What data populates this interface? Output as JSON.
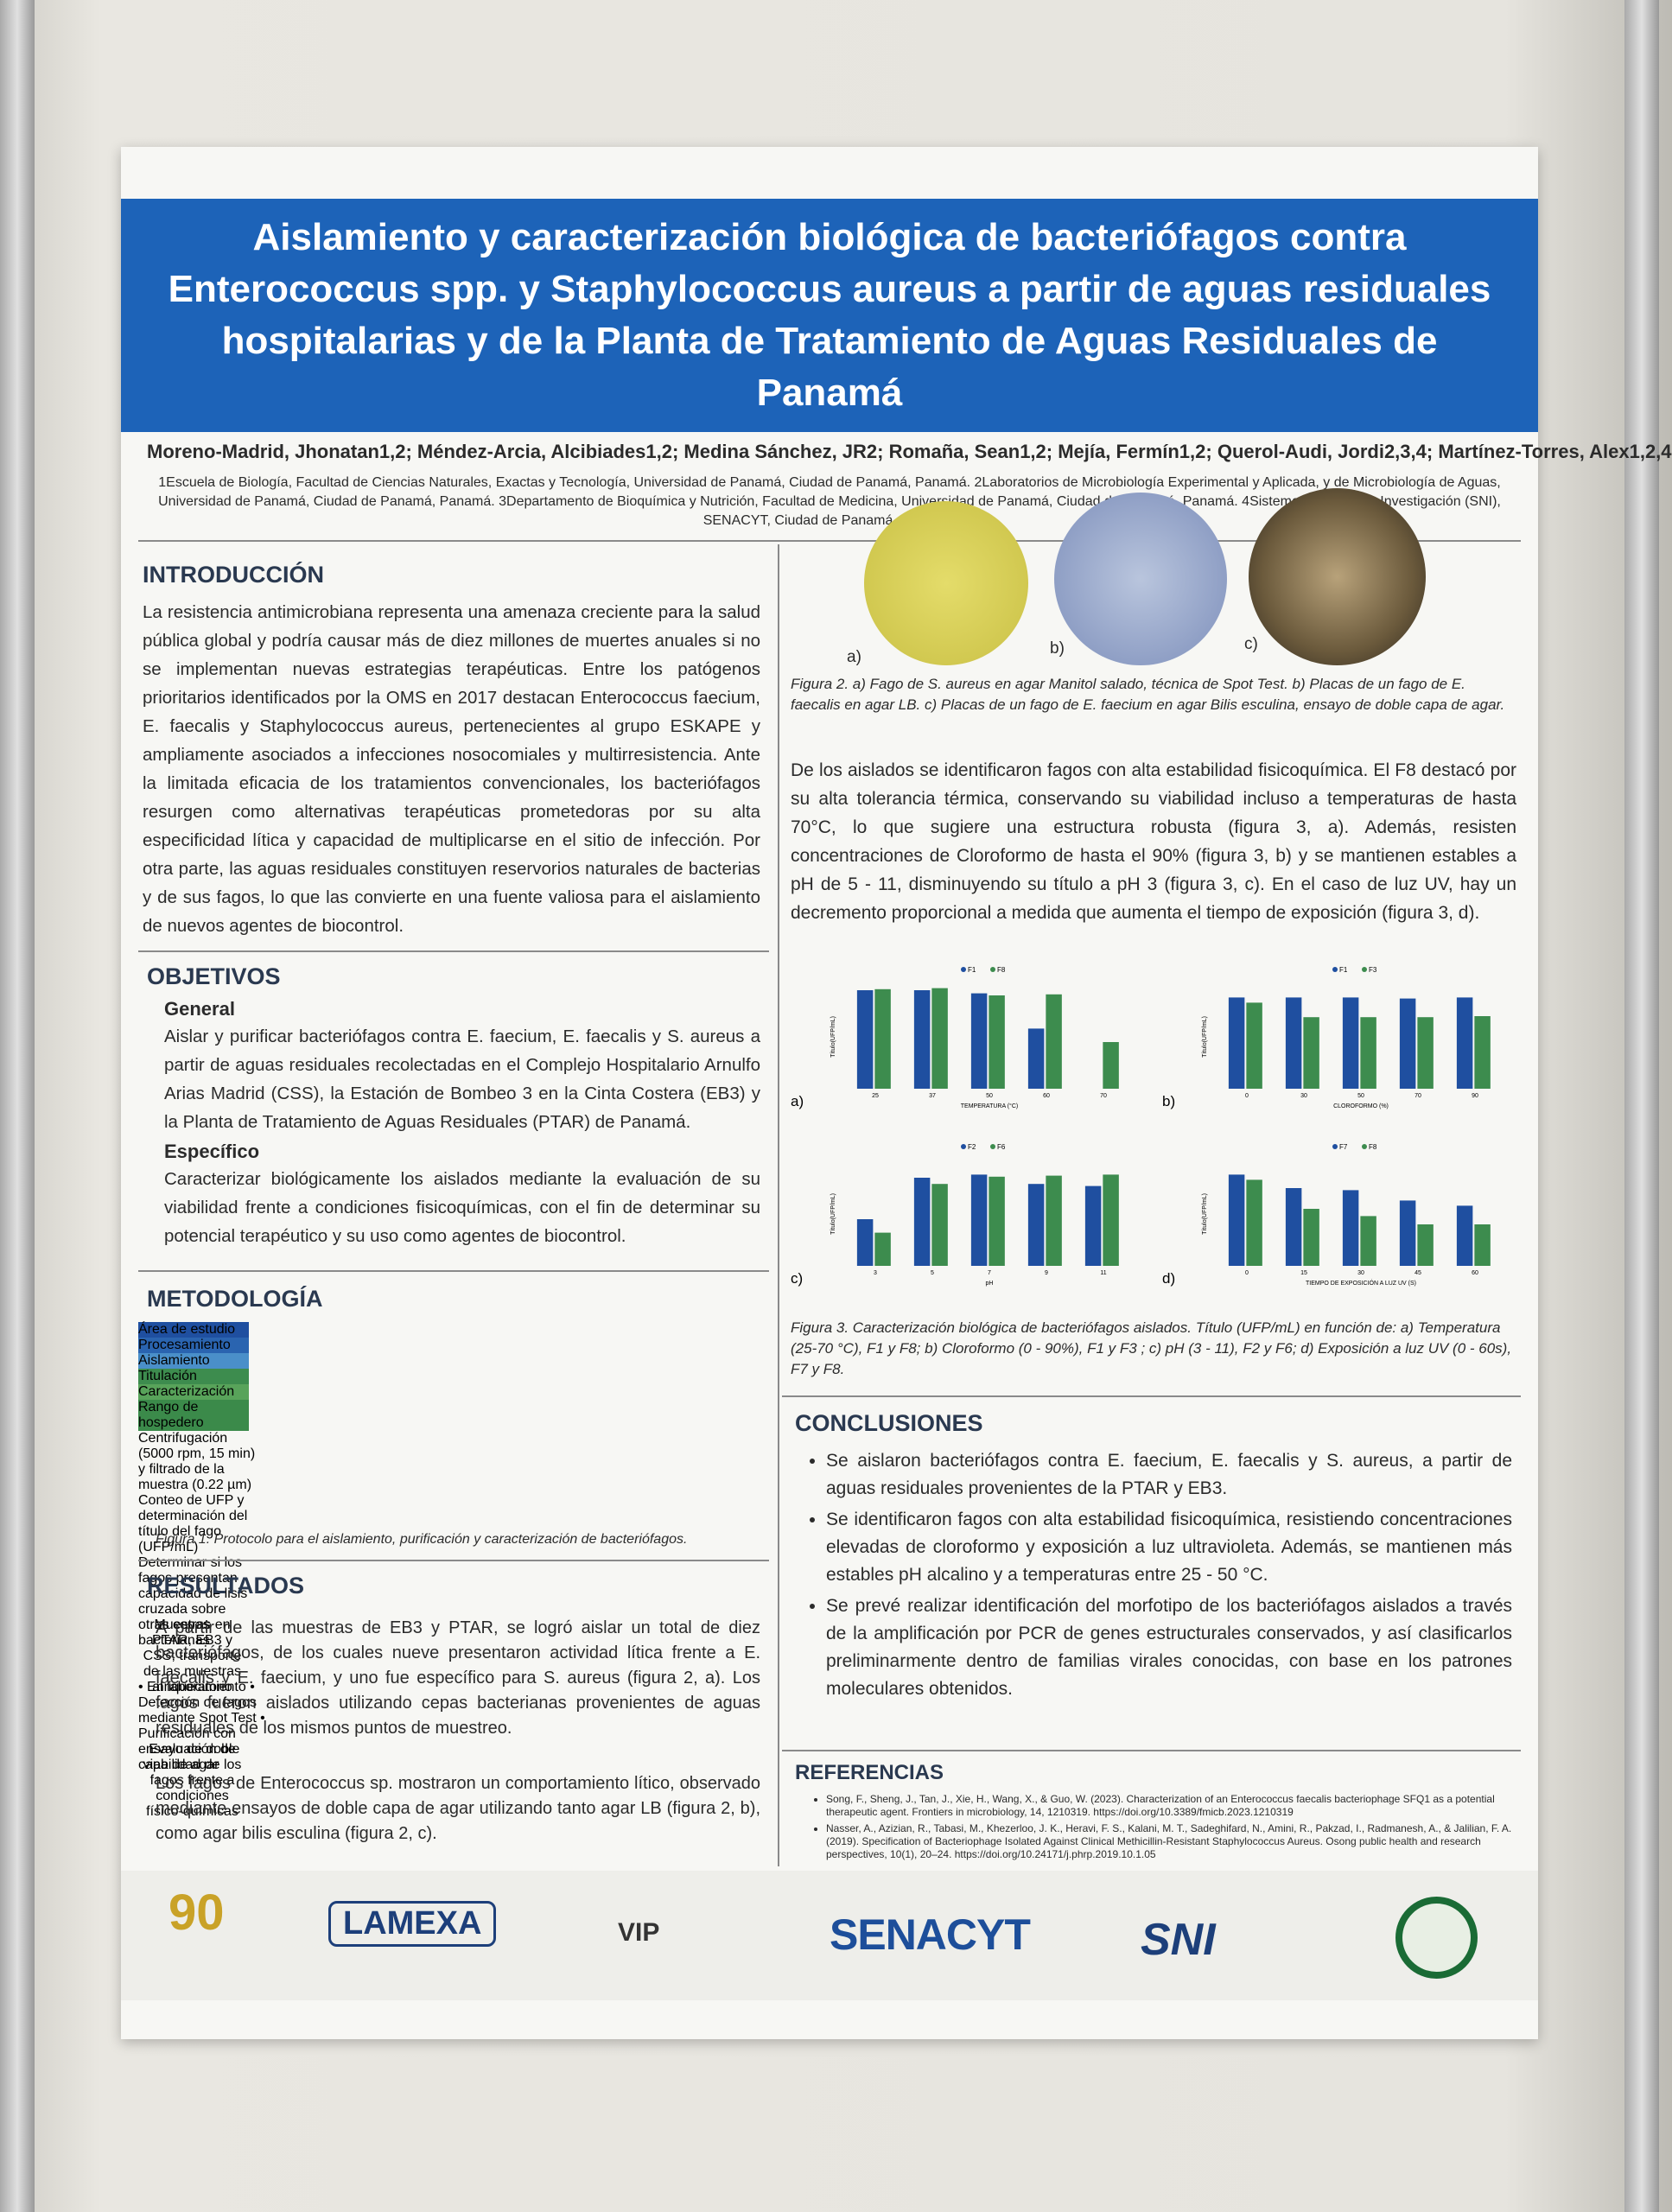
{
  "header": {
    "title": "Aislamiento y caracterización biológica de bacteriófagos contra Enterococcus spp. y Staphylococcus aureus a partir de aguas residuales hospitalarias y de la Planta de Tratamiento de Aguas Residuales de Panamá",
    "authors": "Moreno-Madrid, Jhonatan1,2; Méndez-Arcia, Alcibiades1,2; Medina Sánchez, JR2; Romaña, Sean1,2; Mejía, Fermín1,2; Querol-Audi, Jordi2,3,4; Martínez-Torres, Alex1,2,4",
    "affiliations": "1Escuela de Biología, Facultad de Ciencias Naturales, Exactas y Tecnología, Universidad de Panamá, Ciudad de Panamá, Panamá. 2Laboratorios de Microbiología Experimental y Aplicada, y de Microbiología de Aguas, Universidad de Panamá, Ciudad de Panamá, Panamá. 3Departamento de Bioquímica y Nutrición, Facultad de Medicina, Universidad de Panamá, Ciudad de Panamá, Panamá. 4Sistema Nacional de Investigación (SNI), SENACYT, Ciudad de Panamá, Panamá."
  },
  "intro": {
    "heading": "INTRODUCCIÓN",
    "text": "La resistencia antimicrobiana representa una amenaza creciente para la salud pública global y podría causar más de diez millones de muertes anuales si no se implementan nuevas estrategias terapéuticas. Entre los patógenos prioritarios identificados por la OMS en 2017 destacan Enterococcus faecium, E. faecalis y Staphylococcus aureus, pertenecientes al grupo ESKAPE y ampliamente asociados a infecciones nosocomiales y multirresistencia. Ante la limitada eficacia de los tratamientos convencionales, los bacteriófagos resurgen como alternativas terapéuticas prometedoras por su alta especificidad lítica y capacidad de multiplicarse en el sitio de infección. Por otra parte, las aguas residuales constituyen reservorios naturales de bacterias y de sus fagos, lo que las convierte en una fuente valiosa para el aislamiento de nuevos agentes de biocontrol."
  },
  "objetivos": {
    "heading": "OBJETIVOS",
    "general_heading": "General",
    "general_text": "Aislar y purificar bacteriófagos contra E. faecium, E. faecalis y S. aureus a partir de aguas residuales recolectadas en el Complejo Hospitalario Arnulfo Arias Madrid (CSS), la Estación de Bombeo 3 en la Cinta Costera (EB3) y la Planta de Tratamiento de Aguas Residuales (PTAR) de Panamá.",
    "especifico_heading": "Específico",
    "especifico_text": "Caracterizar biológicamente los aislados mediante la evaluación de su viabilidad frente a condiciones fisicoquímicas, con el fin de determinar su potencial terapéutico y su uso como agentes de biocontrol."
  },
  "metodologia": {
    "heading": "METODOLOGÍA",
    "steps": [
      "Área de estudio",
      "Procesamiento",
      "Aislamiento",
      "Titulación",
      "Caracterización",
      "Rango de hospedero"
    ],
    "top_notes": [
      "Centrifugación (5000 rpm, 15 min) y filtrado de la muestra (0.22 µm)",
      "Conteo de UFP y determinación del título del fago (UFP/mL)",
      "Determinar si los fagos presentan capacidad de lisis cruzada sobre otras cepas bacterianas"
    ],
    "bottom_notes": [
      "Muestras en PTAR, EB3 y CSS; transporte de las muestras al laboratorio",
      "• Enriquecimiento • Detección de fagos mediante Spot Test • Purificación con ensayo de doble capa de agar",
      "Evaluación de viabilidad de los fagos frente a condiciones físico-químicas"
    ],
    "caption": "Figura 1. Protocolo para el aislamiento, purificación y caracterización de bacteriófagos."
  },
  "resultados": {
    "heading": "RESULTADOS",
    "paragraphs": [
      "A partir de las muestras de EB3 y PTAR, se logró aislar un total de diez bacteriófagos, de los cuales nueve presentaron actividad lítica frente a E. faecalis y E. faecium, y uno fue específico para S. aureus (figura 2, a). Los fagos fueron aislados utilizando cepas bacterianas provenientes de aguas residuales de los mismos puntos de muestreo.",
      "Los fagos de Enterococcus sp. mostraron un comportamiento lítico, observado mediante ensayos de doble capa de agar utilizando tanto agar LB (figura 2, b), como agar bilis esculina (figura 2, c)."
    ]
  },
  "figure2": {
    "labels": [
      "a)",
      "b)",
      "c)"
    ],
    "caption": "Figura 2. a) Fago de S. aureus en agar Manitol salado, técnica de Spot Test. b) Placas de un fago de E. faecalis en agar LB. c) Placas de un fago de E. faecium en agar Bilis esculina, ensayo de doble capa de agar."
  },
  "discussion": "De los aislados se identificaron fagos con alta estabilidad fisicoquímica. El F8 destacó por su alta tolerancia térmica, conservando su viabilidad incluso a temperaturas de hasta 70°C, lo que sugiere una estructura robusta (figura 3, a). Además, resisten concentraciones de Cloroformo de hasta el 90% (figura 3, b) y se mantienen estables a pH de 5 - 11, disminuyendo su título a pH 3 (figura 3, c). En el caso de luz UV, hay un decremento proporcional a medida que aumenta el tiempo de exposición (figura 3, d).",
  "chart_data": [
    {
      "type": "bar",
      "panel": "a)",
      "x_label": "TEMPERATURA (°C)",
      "y_label": "Título(UFP/mL)",
      "categories": [
        "25",
        "37",
        "50",
        "60",
        "70"
      ],
      "ylim": [
        0,
        10
      ],
      "series": [
        {
          "name": "F1",
          "color": "#1f4fa0",
          "values": [
            9.5,
            9.5,
            9.2,
            5.8,
            null
          ]
        },
        {
          "name": "F8",
          "color": "#3d8c4e",
          "values": [
            9.6,
            9.7,
            9.0,
            9.1,
            4.5
          ]
        }
      ]
    },
    {
      "type": "bar",
      "panel": "b)",
      "x_label": "CLOROFORMO (%)",
      "y_label": "Título(UFP/mL)",
      "categories": [
        "0",
        "30",
        "50",
        "70",
        "90"
      ],
      "ylim": [
        0,
        10
      ],
      "series": [
        {
          "name": "F1",
          "color": "#1f4fa0",
          "values": [
            8.8,
            8.8,
            8.8,
            8.7,
            8.8
          ]
        },
        {
          "name": "F3",
          "color": "#3d8c4e",
          "values": [
            8.3,
            6.9,
            6.9,
            6.9,
            7.0
          ]
        }
      ]
    },
    {
      "type": "bar",
      "panel": "c)",
      "x_label": "pH",
      "y_label": "Título(UFP/mL)",
      "categories": [
        "3",
        "5",
        "7",
        "9",
        "11"
      ],
      "ylim": [
        0,
        10
      ],
      "series": [
        {
          "name": "F2",
          "color": "#1f4fa0",
          "values": [
            4.5,
            8.5,
            8.8,
            7.9,
            7.7
          ]
        },
        {
          "name": "F6",
          "color": "#3d8c4e",
          "values": [
            3.2,
            7.9,
            8.6,
            8.7,
            8.8
          ]
        }
      ]
    },
    {
      "type": "bar",
      "panel": "d)",
      "x_label": "TIEMPO DE EXPOSICIÓN A LUZ UV (S)",
      "y_label": "Título(UFP/mL)",
      "categories": [
        "0",
        "15",
        "30",
        "45",
        "60"
      ],
      "ylim": [
        0,
        10
      ],
      "series": [
        {
          "name": "F7",
          "color": "#1f4fa0",
          "values": [
            8.8,
            7.5,
            7.3,
            6.3,
            5.8
          ]
        },
        {
          "name": "F8",
          "color": "#3d8c4e",
          "values": [
            8.3,
            5.5,
            4.8,
            4.0,
            4.0
          ]
        }
      ]
    }
  ],
  "figure3_caption": "Figura 3. Caracterización biológica de bacteriófagos aislados. Título (UFP/mL) en función de: a) Temperatura (25-70 °C), F1 y F8; b) Cloroformo (0 - 90%), F1 y F3 ; c) pH (3 - 11), F2 y F6; d) Exposición a luz UV (0 - 60s), F7 y F8.",
  "conclusiones": {
    "heading": "CONCLUSIONES",
    "bullets": [
      "Se aislaron bacteriófagos contra E. faecium, E. faecalis y S. aureus, a partir de aguas residuales provenientes de la PTAR y EB3.",
      "Se identificaron fagos con alta estabilidad fisicoquímica, resistiendo concentraciones elevadas de cloroformo y exposición a luz ultravioleta. Además, se mantienen más estables pH alcalino y a temperaturas entre 25 - 50 °C.",
      "Se prevé realizar identificación del morfotipo de los bacteriófagos aislados a través de la amplificación por PCR de genes estructurales conservados, y así clasificarlos preliminarmente dentro de familias virales conocidas, con base en los patrones moleculares obtenidos."
    ]
  },
  "referencias": {
    "heading": "REFERENCIAS",
    "items": [
      "Song, F., Sheng, J., Tan, J., Xie, H., Wang, X., & Guo, W. (2023). Characterization of an Enterococcus faecalis bacteriophage SFQ1 as a potential therapeutic agent. Frontiers in microbiology, 14, 1210319. https://doi.org/10.3389/fmicb.2023.1210319",
      "Nasser, A., Azizian, R., Tabasi, M., Khezerloo, J. K., Heravi, F. S., Kalani, M. T., Sadeghifard, N., Amini, R., Pakzad, I., Radmanesh, A., & Jalilian, F. A. (2019). Specification of Bacteriophage Isolated Against Clinical Methicillin-Resistant Staphylococcus Aureus. Osong public health and research perspectives, 10(1), 20–24. https://doi.org/10.24171/j.phrp.2019.10.1.05"
    ]
  },
  "logos": [
    "90",
    "LAMEXA",
    "VIP",
    "SENACYT",
    "SNI"
  ]
}
